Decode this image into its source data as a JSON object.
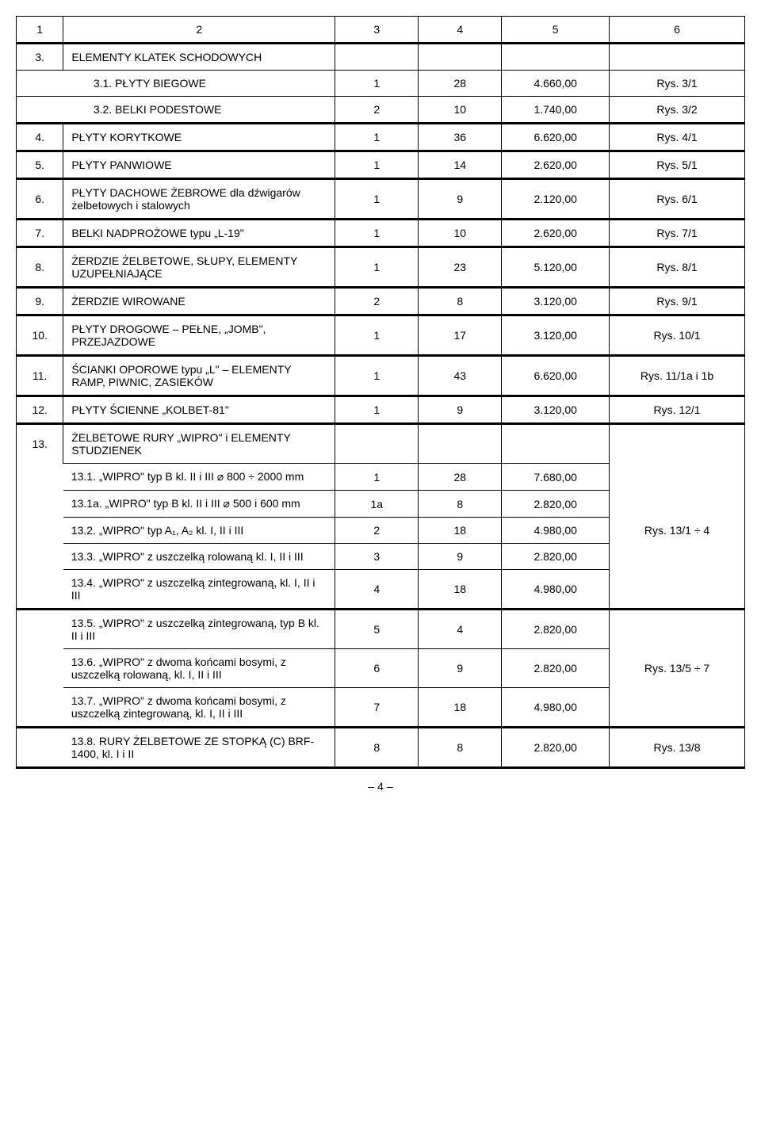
{
  "header": [
    "1",
    "2",
    "3",
    "4",
    "5",
    "6"
  ],
  "sections": {
    "s3": "ELEMENTY KLATEK SCHODOWYCH",
    "s13": "ŻELBETOWE RURY „WIPRO\" i ELEMENTY STUDZIENEK"
  },
  "rows": {
    "r3_1": {
      "num": "3.1.",
      "label": "PŁYTY BIEGOWE",
      "c3": "1",
      "c4": "28",
      "c5": "4.660,00",
      "c6": "Rys. 3/1"
    },
    "r3_2": {
      "num": "3.2.",
      "label": "BELKI PODESTOWE",
      "c3": "2",
      "c4": "10",
      "c5": "1.740,00",
      "c6": "Rys. 3/2"
    },
    "r4": {
      "num": "4.",
      "label": "PŁYTY KORYTKOWE",
      "c3": "1",
      "c4": "36",
      "c5": "6.620,00",
      "c6": "Rys. 4/1"
    },
    "r5": {
      "num": "5.",
      "label": "PŁYTY PANWIOWE",
      "c3": "1",
      "c4": "14",
      "c5": "2.620,00",
      "c6": "Rys. 5/1"
    },
    "r6": {
      "num": "6.",
      "label": "PŁYTY DACHOWE ŻEBROWE dla dźwigarów żelbetowych i stalowych",
      "c3": "1",
      "c4": "9",
      "c5": "2.120,00",
      "c6": "Rys. 6/1"
    },
    "r7": {
      "num": "7.",
      "label": "BELKI NADPROŻOWE typu „L-19\"",
      "c3": "1",
      "c4": "10",
      "c5": "2.620,00",
      "c6": "Rys. 7/1"
    },
    "r8": {
      "num": "8.",
      "label": "ŻERDZIE ŻELBETOWE, SŁUPY, ELEMENTY UZUPEŁNIAJĄCE",
      "c3": "1",
      "c4": "23",
      "c5": "5.120,00",
      "c6": "Rys. 8/1"
    },
    "r9": {
      "num": "9.",
      "label": "ŻERDZIE WIROWANE",
      "c3": "2",
      "c4": "8",
      "c5": "3.120,00",
      "c6": "Rys. 9/1"
    },
    "r10": {
      "num": "10.",
      "label": "PŁYTY DROGOWE – PEŁNE, „JOMB\", PRZEJAZDOWE",
      "c3": "1",
      "c4": "17",
      "c5": "3.120,00",
      "c6": "Rys. 10/1"
    },
    "r11": {
      "num": "11.",
      "label": "ŚCIANKI OPOROWE typu „L\" – ELEMENTY RAMP, PIWNIC, ZASIEKÓW",
      "c3": "1",
      "c4": "43",
      "c5": "6.620,00",
      "c6": "Rys. 11/1a i 1b"
    },
    "r12": {
      "num": "12.",
      "label": "PŁYTY ŚCIENNE „KOLBET-81\"",
      "c3": "1",
      "c4": "9",
      "c5": "3.120,00",
      "c6": "Rys. 12/1"
    },
    "r13": {
      "num": "13."
    },
    "r13_1": {
      "num": "13.1.",
      "label": "„WIPRO\" typ B kl. II i III ⌀ 800 ÷ 2000 mm",
      "c3": "1",
      "c4": "28",
      "c5": "7.680,00"
    },
    "r13_1a": {
      "num": "13.1a.",
      "label": "„WIPRO\" typ B kl. II i III ⌀ 500 i 600 mm",
      "c3": "1a",
      "c4": "8",
      "c5": "2.820,00"
    },
    "r13_2": {
      "num": "13.2.",
      "label": "„WIPRO\" typ A₁, A₂ kl. I, II i III",
      "c3": "2",
      "c4": "18",
      "c5": "4.980,00",
      "c6": "Rys. 13/1 ÷ 4"
    },
    "r13_3": {
      "num": "13.3.",
      "label": "„WIPRO\" z uszczelką rolowaną kl. I, II i III",
      "c3": "3",
      "c4": "9",
      "c5": "2.820,00"
    },
    "r13_4": {
      "num": "13.4.",
      "label": "„WIPRO\" z uszczelką zintegrowaną, kl. I, II i III",
      "c3": "4",
      "c4": "18",
      "c5": "4.980,00"
    },
    "r13_5": {
      "num": "13.5.",
      "label": "„WIPRO\" z uszczelką zintegrowaną, typ B kl. II i III",
      "c3": "5",
      "c4": "4",
      "c5": "2.820,00"
    },
    "r13_6": {
      "num": "13.6.",
      "label": "„WIPRO\" z dwoma końcami bosymi, z uszczelką rolowaną, kl. I, II i III",
      "c3": "6",
      "c4": "9",
      "c5": "2.820,00",
      "c6": "Rys. 13/5 ÷ 7"
    },
    "r13_7": {
      "num": "13.7.",
      "label": "„WIPRO\" z dwoma końcami bosymi, z uszczelką zintegrowaną, kl. I, II i III",
      "c3": "7",
      "c4": "18",
      "c5": "4.980,00"
    },
    "r13_8": {
      "num": "13.8.",
      "label": "RURY ŻELBETOWE ZE STOPKĄ (C) BRF-1400, kl. I i II",
      "c3": "8",
      "c4": "8",
      "c5": "2.820,00",
      "c6": "Rys. 13/8"
    }
  },
  "footer": "– 4 –"
}
